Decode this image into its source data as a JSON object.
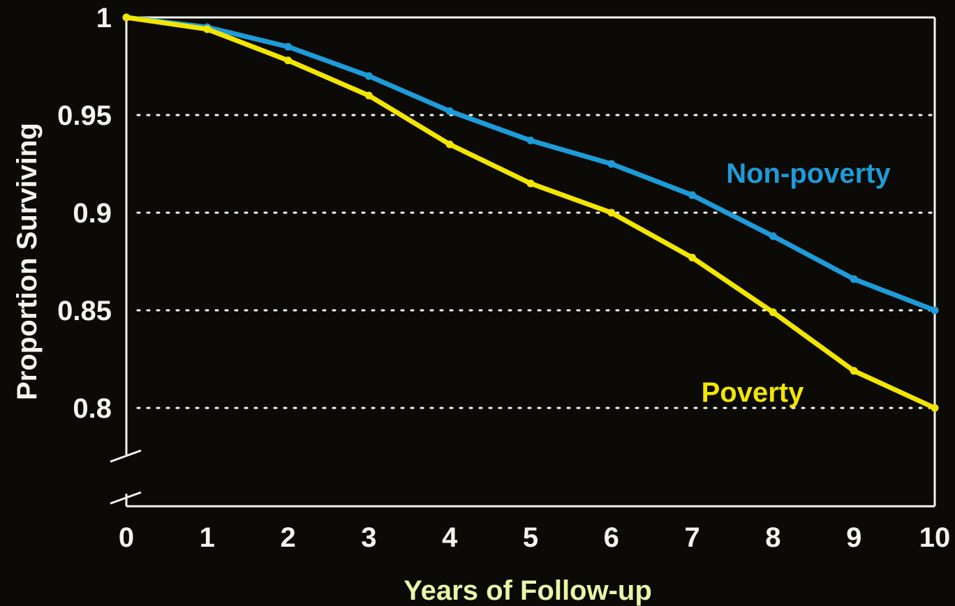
{
  "chart_data": {
    "type": "line",
    "title": "",
    "xlabel": "Years of Follow-up",
    "ylabel": "Proportion Surviving",
    "x": [
      0,
      1,
      2,
      3,
      4,
      5,
      6,
      7,
      8,
      9,
      10
    ],
    "x_ticks": [
      "0",
      "1",
      "2",
      "3",
      "4",
      "5",
      "6",
      "7",
      "8",
      "9",
      "10"
    ],
    "y_ticks": [
      "1",
      "0.95",
      "0.9",
      "0.85",
      "0.8"
    ],
    "y_tick_values": [
      1,
      0.95,
      0.9,
      0.85,
      0.8
    ],
    "xlim": [
      0,
      10
    ],
    "ylim": [
      0.75,
      1
    ],
    "y_axis_break": true,
    "grid": "dotted horizontal at 0.95, 0.9, 0.85, 0.8",
    "series": [
      {
        "name": "Non-poverty",
        "color": "#1e9bd9",
        "values": [
          1.0,
          0.995,
          0.985,
          0.97,
          0.952,
          0.937,
          0.925,
          0.909,
          0.888,
          0.866,
          0.85
        ]
      },
      {
        "name": "Poverty",
        "color": "#f2e600",
        "values": [
          1.0,
          0.994,
          0.978,
          0.96,
          0.935,
          0.915,
          0.9,
          0.877,
          0.849,
          0.819,
          0.8
        ]
      }
    ],
    "colors": {
      "background": "#0b0a06",
      "frame": "#f4f4ec",
      "xlabel": "#eaf5a8",
      "ylabel": "#f4f4ec"
    }
  }
}
